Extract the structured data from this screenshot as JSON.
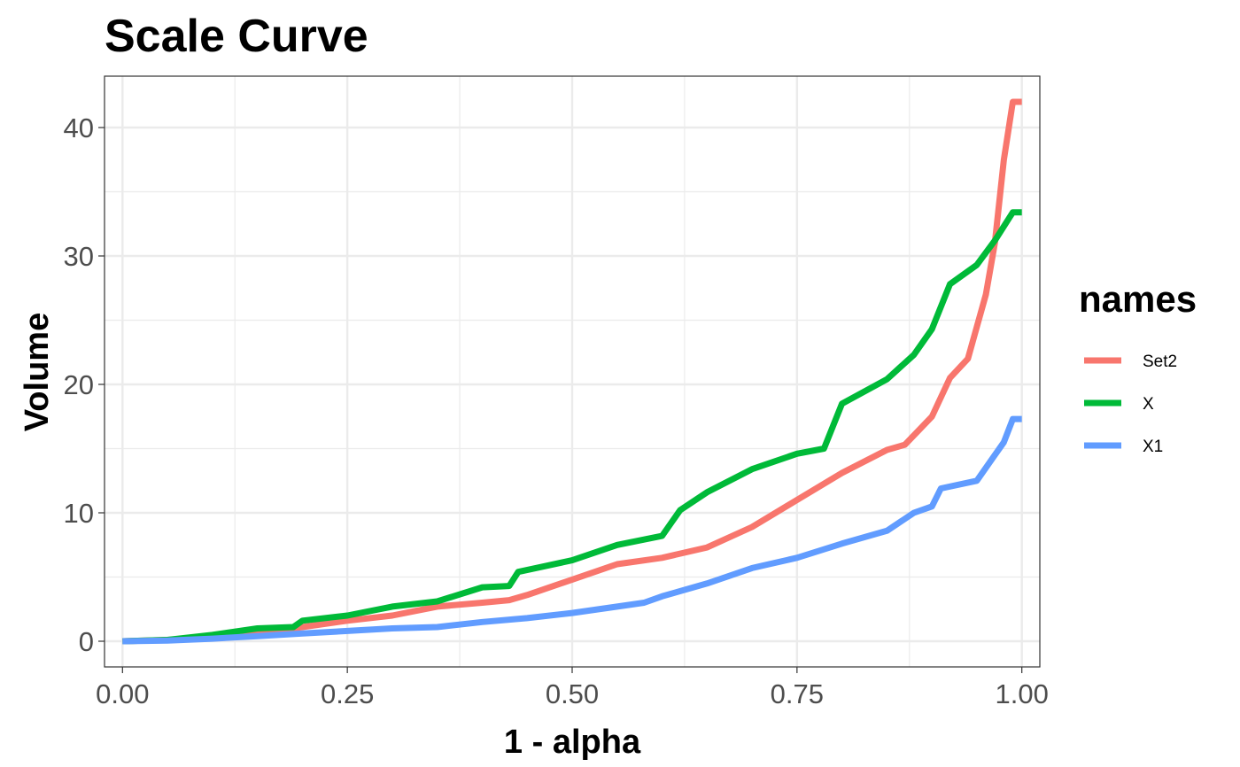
{
  "chart_data": {
    "type": "line",
    "title": "Scale Curve",
    "xlabel": "1 - alpha",
    "ylabel": "Volume",
    "xlim": [
      -0.02,
      1.02
    ],
    "ylim": [
      -2,
      44
    ],
    "xticks": [
      0.0,
      0.25,
      0.5,
      0.75,
      1.0
    ],
    "xtick_labels": [
      "0.00",
      "0.25",
      "0.50",
      "0.75",
      "1.00"
    ],
    "yticks": [
      0,
      10,
      20,
      30,
      40
    ],
    "ytick_labels": [
      "0",
      "10",
      "20",
      "30",
      "40"
    ],
    "grid": true,
    "legend": {
      "title": "names",
      "position": "right"
    },
    "series": [
      {
        "name": "Set2",
        "color": "#F8766D",
        "x": [
          0.0,
          0.05,
          0.1,
          0.15,
          0.2,
          0.25,
          0.3,
          0.35,
          0.4,
          0.43,
          0.45,
          0.5,
          0.55,
          0.6,
          0.65,
          0.7,
          0.75,
          0.8,
          0.85,
          0.87,
          0.9,
          0.92,
          0.94,
          0.96,
          0.97,
          0.98,
          0.99,
          1.0
        ],
        "y": [
          0.0,
          0.1,
          0.3,
          0.6,
          1.1,
          1.6,
          2.0,
          2.7,
          3.0,
          3.2,
          3.6,
          4.8,
          6.0,
          6.5,
          7.3,
          8.9,
          11.0,
          13.1,
          14.9,
          15.3,
          17.5,
          20.5,
          22.0,
          27.0,
          31.0,
          37.5,
          42.0,
          42.0
        ]
      },
      {
        "name": "X",
        "color": "#00BA38",
        "x": [
          0.0,
          0.05,
          0.1,
          0.15,
          0.19,
          0.2,
          0.25,
          0.3,
          0.35,
          0.4,
          0.43,
          0.44,
          0.5,
          0.55,
          0.6,
          0.62,
          0.65,
          0.7,
          0.75,
          0.78,
          0.8,
          0.85,
          0.88,
          0.9,
          0.92,
          0.95,
          0.97,
          0.99,
          1.0
        ],
        "y": [
          0.0,
          0.1,
          0.5,
          1.0,
          1.1,
          1.6,
          2.0,
          2.7,
          3.1,
          4.2,
          4.3,
          5.4,
          6.3,
          7.5,
          8.2,
          10.2,
          11.6,
          13.4,
          14.6,
          15.0,
          18.5,
          20.4,
          22.3,
          24.3,
          27.8,
          29.3,
          31.2,
          33.4,
          33.4
        ]
      },
      {
        "name": "X1",
        "color": "#619CFF",
        "x": [
          0.0,
          0.05,
          0.1,
          0.15,
          0.2,
          0.25,
          0.3,
          0.35,
          0.4,
          0.45,
          0.5,
          0.55,
          0.58,
          0.6,
          0.65,
          0.7,
          0.75,
          0.8,
          0.85,
          0.88,
          0.9,
          0.91,
          0.95,
          0.97,
          0.98,
          0.99,
          1.0
        ],
        "y": [
          0.0,
          0.05,
          0.2,
          0.4,
          0.6,
          0.8,
          1.0,
          1.1,
          1.5,
          1.8,
          2.2,
          2.7,
          3.0,
          3.5,
          4.5,
          5.7,
          6.5,
          7.6,
          8.6,
          10.0,
          10.5,
          11.9,
          12.5,
          14.5,
          15.5,
          17.3,
          17.3
        ]
      }
    ]
  }
}
